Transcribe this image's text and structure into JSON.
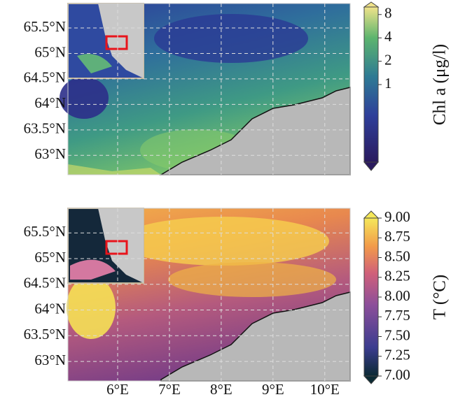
{
  "panels": [
    {
      "xlim": [
        5.04,
        10.49
      ],
      "ylim": [
        62.62,
        65.98
      ],
      "xticks": [
        6,
        7,
        8,
        9,
        10
      ],
      "yticks": [
        {
          "value": 63,
          "label": "63°N"
        },
        {
          "value": 63.5,
          "label": "63.5°N"
        },
        {
          "value": 64,
          "label": "64°N"
        },
        {
          "value": 64.5,
          "label": "64.5°N"
        },
        {
          "value": 65,
          "label": "65°N"
        },
        {
          "value": 65.5,
          "label": "65.5°N"
        }
      ],
      "colorbar": {
        "label": "Chl a (μg/l)",
        "scale": "log",
        "clim": [
          0.1,
          10
        ],
        "ticks": [
          1,
          2,
          4,
          8
        ]
      }
    },
    {
      "xlim": [
        5.04,
        10.49
      ],
      "ylim": [
        62.62,
        65.98
      ],
      "xticks": [
        {
          "value": 6,
          "label": "6°E"
        },
        {
          "value": 7,
          "label": "7°E"
        },
        {
          "value": 8,
          "label": "8°E"
        },
        {
          "value": 9,
          "label": "9°E"
        },
        {
          "value": 10,
          "label": "10°E"
        }
      ],
      "yticks": [
        {
          "value": 63,
          "label": "63°N"
        },
        {
          "value": 63.5,
          "label": "63.5°N"
        },
        {
          "value": 64,
          "label": "64°N"
        },
        {
          "value": 64.5,
          "label": "64.5°N"
        },
        {
          "value": 65,
          "label": "65°N"
        },
        {
          "value": 65.5,
          "label": "65.5°N"
        }
      ],
      "colorbar": {
        "label": "T (°C)",
        "scale": "linear",
        "clim": [
          7,
          9
        ],
        "ticks": [
          {
            "value": 7,
            "label": "7.00"
          },
          {
            "value": 7.25,
            "label": "7.25"
          },
          {
            "value": 7.5,
            "label": "7.50"
          },
          {
            "value": 7.75,
            "label": "7.75"
          },
          {
            "value": 8,
            "label": "8.00"
          },
          {
            "value": 8.25,
            "label": "8.25"
          },
          {
            "value": 8.5,
            "label": "8.50"
          },
          {
            "value": 8.75,
            "label": "8.75"
          },
          {
            "value": 9,
            "label": "9.00"
          }
        ]
      }
    }
  ]
}
